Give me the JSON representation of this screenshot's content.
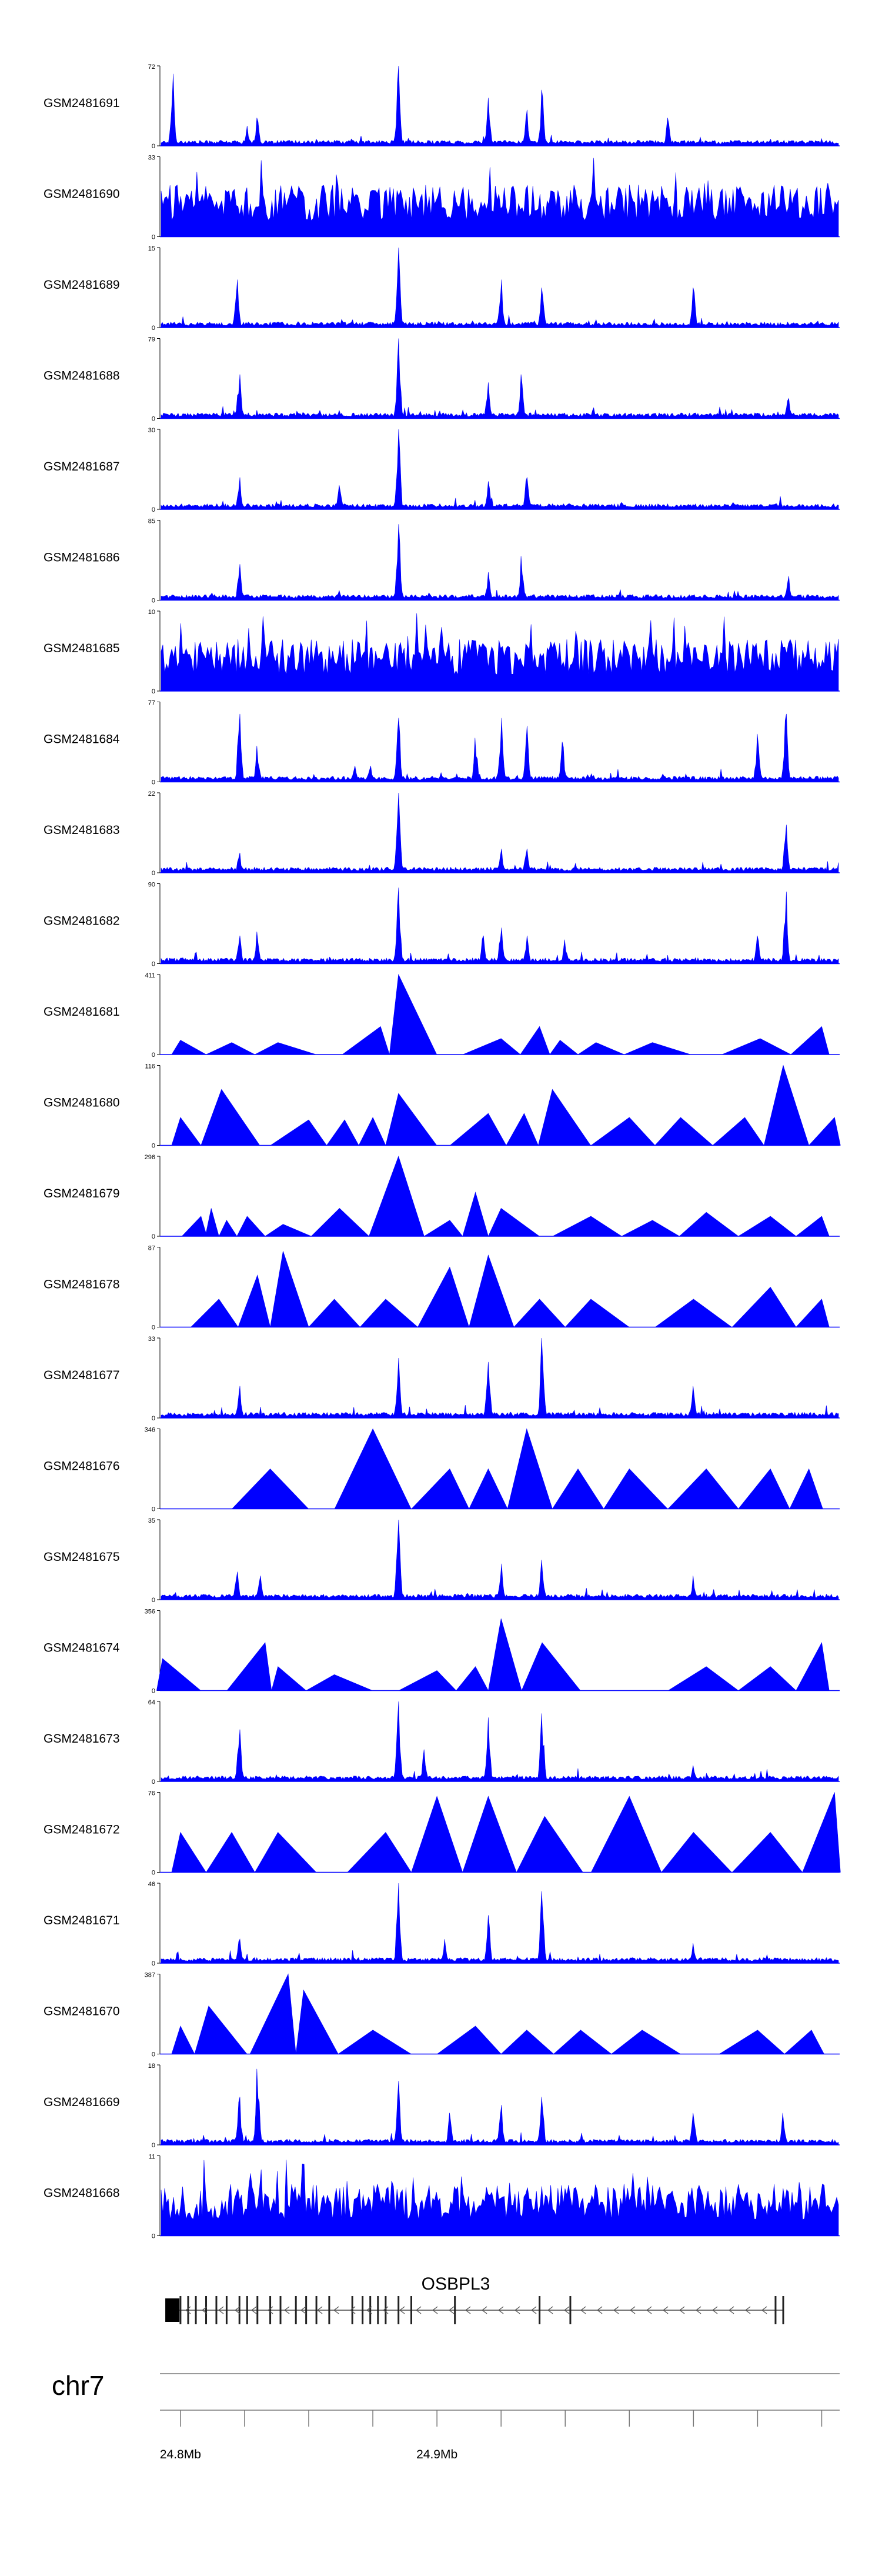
{
  "chart_data": {
    "type": "area",
    "title": "",
    "xlabel": "",
    "ylabel": "",
    "x_range_mb": [
      24.792,
      25.057
    ],
    "series_color": "#0000ff",
    "tracks": [
      {
        "name": "GSM2481691",
        "ymax": 72,
        "style": "spiky",
        "peaks": [
          [
            24.797,
            0.9
          ],
          [
            24.826,
            0.25
          ],
          [
            24.83,
            0.35
          ],
          [
            24.885,
            1.0
          ],
          [
            24.92,
            0.6
          ],
          [
            24.935,
            0.45
          ],
          [
            24.941,
            0.7
          ],
          [
            24.99,
            0.35
          ]
        ]
      },
      {
        "name": "GSM2481690",
        "ymax": 33,
        "style": "dense",
        "peaks": []
      },
      {
        "name": "GSM2481689",
        "ymax": 15,
        "style": "spiky",
        "peaks": [
          [
            24.822,
            0.6
          ],
          [
            24.885,
            1.0
          ],
          [
            24.925,
            0.6
          ],
          [
            24.941,
            0.5
          ],
          [
            25.0,
            0.5
          ]
        ]
      },
      {
        "name": "GSM2481688",
        "ymax": 79,
        "style": "spiky",
        "peaks": [
          [
            24.823,
            0.55
          ],
          [
            24.862,
            0.1
          ],
          [
            24.885,
            1.0
          ],
          [
            24.92,
            0.45
          ],
          [
            24.933,
            0.55
          ],
          [
            25.037,
            0.25
          ]
        ]
      },
      {
        "name": "GSM2481687",
        "ymax": 30,
        "style": "spiky",
        "peaks": [
          [
            24.823,
            0.4
          ],
          [
            24.862,
            0.3
          ],
          [
            24.885,
            1.0
          ],
          [
            24.92,
            0.35
          ],
          [
            24.935,
            0.4
          ]
        ]
      },
      {
        "name": "GSM2481686",
        "ymax": 85,
        "style": "spiky",
        "peaks": [
          [
            24.823,
            0.45
          ],
          [
            24.862,
            0.12
          ],
          [
            24.885,
            0.95
          ],
          [
            24.92,
            0.35
          ],
          [
            24.933,
            0.55
          ],
          [
            25.037,
            0.3
          ]
        ]
      },
      {
        "name": "GSM2481685",
        "ymax": 10,
        "style": "dense",
        "peaks": []
      },
      {
        "name": "GSM2481684",
        "ymax": 77,
        "style": "spiky",
        "peaks": [
          [
            24.823,
            0.85
          ],
          [
            24.83,
            0.45
          ],
          [
            24.868,
            0.2
          ],
          [
            24.874,
            0.2
          ],
          [
            24.885,
            0.8
          ],
          [
            24.915,
            0.55
          ],
          [
            24.925,
            0.8
          ],
          [
            24.935,
            0.7
          ],
          [
            24.949,
            0.5
          ],
          [
            24.988,
            0.1
          ],
          [
            24.997,
            0.1
          ],
          [
            25.025,
            0.6
          ],
          [
            25.036,
            0.85
          ]
        ]
      },
      {
        "name": "GSM2481683",
        "ymax": 22,
        "style": "spiky",
        "peaks": [
          [
            24.823,
            0.25
          ],
          [
            24.885,
            1.0
          ],
          [
            24.925,
            0.3
          ],
          [
            24.935,
            0.3
          ],
          [
            25.036,
            0.6
          ]
        ]
      },
      {
        "name": "GSM2481682",
        "ymax": 90,
        "style": "spiky",
        "peaks": [
          [
            24.823,
            0.35
          ],
          [
            24.83,
            0.4
          ],
          [
            24.885,
            0.95
          ],
          [
            24.918,
            0.35
          ],
          [
            24.925,
            0.45
          ],
          [
            24.935,
            0.35
          ],
          [
            24.95,
            0.3
          ],
          [
            25.025,
            0.35
          ],
          [
            25.036,
            0.9
          ]
        ]
      },
      {
        "name": "GSM2481681",
        "ymax": 411,
        "style": "sparse",
        "peaks": [
          [
            24.8,
            0.18
          ],
          [
            24.82,
            0.15
          ],
          [
            24.838,
            0.15
          ],
          [
            24.878,
            0.35
          ],
          [
            24.885,
            1.0
          ],
          [
            24.925,
            0.2
          ],
          [
            24.94,
            0.35
          ],
          [
            24.948,
            0.18
          ],
          [
            24.962,
            0.15
          ],
          [
            24.984,
            0.15
          ],
          [
            25.026,
            0.2
          ],
          [
            25.05,
            0.35
          ]
        ]
      },
      {
        "name": "GSM2481680",
        "ymax": 116,
        "style": "sparse",
        "peaks": [
          [
            24.8,
            0.35
          ],
          [
            24.816,
            0.7
          ],
          [
            24.85,
            0.32
          ],
          [
            24.864,
            0.32
          ],
          [
            24.875,
            0.35
          ],
          [
            24.885,
            0.65
          ],
          [
            24.92,
            0.4
          ],
          [
            24.934,
            0.4
          ],
          [
            24.945,
            0.7
          ],
          [
            24.975,
            0.35
          ],
          [
            24.995,
            0.35
          ],
          [
            25.02,
            0.35
          ],
          [
            25.035,
            1.0
          ],
          [
            25.055,
            0.35
          ]
        ]
      },
      {
        "name": "GSM2481679",
        "ymax": 296,
        "style": "sparse",
        "peaks": [
          [
            24.808,
            0.25
          ],
          [
            24.812,
            0.35
          ],
          [
            24.818,
            0.2
          ],
          [
            24.826,
            0.25
          ],
          [
            24.84,
            0.15
          ],
          [
            24.862,
            0.35
          ],
          [
            24.885,
            1.0
          ],
          [
            24.905,
            0.2
          ],
          [
            24.915,
            0.55
          ],
          [
            24.925,
            0.35
          ],
          [
            24.96,
            0.25
          ],
          [
            24.984,
            0.2
          ],
          [
            25.005,
            0.3
          ],
          [
            25.03,
            0.25
          ],
          [
            25.05,
            0.25
          ]
        ]
      },
      {
        "name": "GSM2481678",
        "ymax": 87,
        "style": "sparse",
        "peaks": [
          [
            24.815,
            0.35
          ],
          [
            24.83,
            0.65
          ],
          [
            24.84,
            0.95
          ],
          [
            24.86,
            0.35
          ],
          [
            24.88,
            0.35
          ],
          [
            24.905,
            0.75
          ],
          [
            24.92,
            0.9
          ],
          [
            24.94,
            0.35
          ],
          [
            24.96,
            0.35
          ],
          [
            25.0,
            0.35
          ],
          [
            25.03,
            0.5
          ],
          [
            25.05,
            0.35
          ]
        ]
      },
      {
        "name": "GSM2481677",
        "ymax": 33,
        "style": "spiky",
        "peaks": [
          [
            24.823,
            0.4
          ],
          [
            24.885,
            0.75
          ],
          [
            24.92,
            0.7
          ],
          [
            24.941,
            1.0
          ],
          [
            25.0,
            0.4
          ]
        ]
      },
      {
        "name": "GSM2481676",
        "ymax": 346,
        "style": "sparse",
        "peaks": [
          [
            24.835,
            0.5
          ],
          [
            24.875,
            1.0
          ],
          [
            24.905,
            0.5
          ],
          [
            24.92,
            0.5
          ],
          [
            24.935,
            1.0
          ],
          [
            24.955,
            0.5
          ],
          [
            24.975,
            0.5
          ],
          [
            25.005,
            0.5
          ],
          [
            25.03,
            0.5
          ],
          [
            25.045,
            0.5
          ]
        ]
      },
      {
        "name": "GSM2481675",
        "ymax": 35,
        "style": "spiky",
        "peaks": [
          [
            24.822,
            0.35
          ],
          [
            24.831,
            0.3
          ],
          [
            24.885,
            1.0
          ],
          [
            24.925,
            0.45
          ],
          [
            24.941,
            0.5
          ],
          [
            25.0,
            0.3
          ]
        ]
      },
      {
        "name": "GSM2481674",
        "ymax": 356,
        "style": "sparse",
        "peaks": [
          [
            24.793,
            0.4
          ],
          [
            24.833,
            0.6
          ],
          [
            24.838,
            0.3
          ],
          [
            24.86,
            0.2
          ],
          [
            24.9,
            0.25
          ],
          [
            24.915,
            0.3
          ],
          [
            24.925,
            0.9
          ],
          [
            24.941,
            0.6
          ],
          [
            25.005,
            0.3
          ],
          [
            25.03,
            0.3
          ],
          [
            25.05,
            0.6
          ]
        ]
      },
      {
        "name": "GSM2481673",
        "ymax": 64,
        "style": "spiky",
        "peaks": [
          [
            24.823,
            0.65
          ],
          [
            24.885,
            1.0
          ],
          [
            24.895,
            0.4
          ],
          [
            24.92,
            0.8
          ],
          [
            24.941,
            0.85
          ],
          [
            25.0,
            0.2
          ]
        ]
      },
      {
        "name": "GSM2481672",
        "ymax": 76,
        "style": "sparse",
        "peaks": [
          [
            24.8,
            0.5
          ],
          [
            24.82,
            0.5
          ],
          [
            24.838,
            0.5
          ],
          [
            24.88,
            0.5
          ],
          [
            24.9,
            0.95
          ],
          [
            24.92,
            0.95
          ],
          [
            24.942,
            0.7
          ],
          [
            24.975,
            0.95
          ],
          [
            25.0,
            0.5
          ],
          [
            25.03,
            0.5
          ],
          [
            25.055,
            1.0
          ]
        ]
      },
      {
        "name": "GSM2481671",
        "ymax": 46,
        "style": "spiky",
        "peaks": [
          [
            24.823,
            0.3
          ],
          [
            24.885,
            1.0
          ],
          [
            24.903,
            0.3
          ],
          [
            24.92,
            0.6
          ],
          [
            24.941,
            0.9
          ],
          [
            25.0,
            0.25
          ]
        ]
      },
      {
        "name": "GSM2481670",
        "ymax": 387,
        "style": "sparse",
        "peaks": [
          [
            24.8,
            0.35
          ],
          [
            24.811,
            0.6
          ],
          [
            24.842,
            1.0
          ],
          [
            24.848,
            0.8
          ],
          [
            24.875,
            0.3
          ],
          [
            24.915,
            0.35
          ],
          [
            24.935,
            0.3
          ],
          [
            24.956,
            0.3
          ],
          [
            24.98,
            0.3
          ],
          [
            25.025,
            0.3
          ],
          [
            25.046,
            0.3
          ]
        ]
      },
      {
        "name": "GSM2481669",
        "ymax": 18,
        "style": "spiky",
        "peaks": [
          [
            24.823,
            0.6
          ],
          [
            24.83,
            0.95
          ],
          [
            24.885,
            0.8
          ],
          [
            24.905,
            0.4
          ],
          [
            24.925,
            0.5
          ],
          [
            24.941,
            0.6
          ],
          [
            25.0,
            0.4
          ],
          [
            25.035,
            0.4
          ]
        ]
      },
      {
        "name": "GSM2481668",
        "ymax": 11,
        "style": "dense",
        "peaks": []
      }
    ],
    "gene": {
      "name": "OSBPL3",
      "strand": "-",
      "start_mb": 24.795,
      "end_mb": 25.035
    },
    "chromosome": "chr7",
    "genome_axis": {
      "ticks_mb": [
        24.8,
        24.825,
        24.85,
        24.875,
        24.9,
        24.925,
        24.95,
        24.975,
        25.0,
        25.025,
        25.05
      ],
      "labels": [
        {
          "mb": 24.8,
          "text": "24.8Mb"
        },
        {
          "mb": 24.9,
          "text": "24.9Mb"
        }
      ]
    }
  }
}
